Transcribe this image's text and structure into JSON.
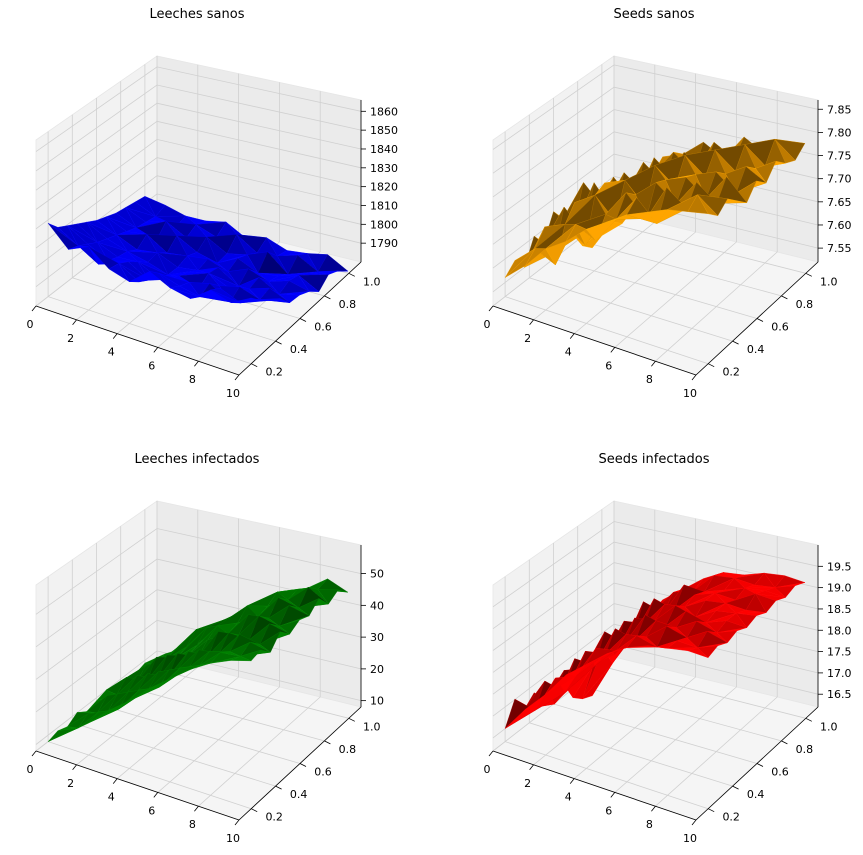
{
  "chart_data": [
    {
      "type": "surface3d",
      "title": "Leeches sanos",
      "color": "#0000ff",
      "x_ticks": [
        "0",
        "2",
        "4",
        "6",
        "8",
        "10"
      ],
      "y_ticks": [
        "0.2",
        "0.4",
        "0.6",
        "0.8",
        "1.0"
      ],
      "z_ticks": [
        "1790",
        "1800",
        "1810",
        "1820",
        "1830",
        "1840",
        "1850",
        "1860"
      ],
      "xlim": [
        0,
        10
      ],
      "ylim": [
        0.1,
        1.1
      ],
      "zlim": [
        1780,
        1866
      ],
      "z_rows": [
        [
          1818,
          1808,
          1813,
          1805,
          1802,
          1811,
          1806,
          1804,
          1812,
          1809,
          1815
        ],
        [
          1812,
          1806,
          1800,
          1804,
          1798,
          1806,
          1803,
          1801,
          1809,
          1805,
          1810
        ],
        [
          1809,
          1803,
          1798,
          1801,
          1795,
          1799,
          1801,
          1804,
          1798,
          1803,
          1806
        ],
        [
          1806,
          1800,
          1796,
          1797,
          1792,
          1797,
          1794,
          1799,
          1802,
          1799,
          1803
        ],
        [
          1803,
          1798,
          1795,
          1793,
          1790,
          1795,
          1798,
          1794,
          1797,
          1801,
          1797
        ],
        [
          1800,
          1796,
          1792,
          1794,
          1790,
          1792,
          1797,
          1791,
          1799,
          1794,
          1797
        ],
        [
          1798,
          1794,
          1796,
          1790,
          1792,
          1794,
          1791,
          1796,
          1793,
          1797,
          1795
        ],
        [
          1796,
          1792,
          1789,
          1795,
          1790,
          1788,
          1794,
          1790,
          1792,
          1796,
          1791
        ],
        [
          1795,
          1791,
          1795,
          1790,
          1794,
          1789,
          1792,
          1797,
          1789,
          1793,
          1796
        ],
        [
          1794,
          1790,
          1788,
          1793,
          1790,
          1795,
          1789,
          1791,
          1795,
          1790,
          1794
        ],
        [
          1793,
          1792,
          1790,
          1791,
          1794,
          1789,
          1793,
          1790,
          1792,
          1795,
          1790
        ]
      ]
    },
    {
      "type": "surface3d",
      "title": "Seeds sanos",
      "color": "#ffa500",
      "x_ticks": [
        "0",
        "2",
        "4",
        "6",
        "8",
        "10"
      ],
      "y_ticks": [
        "0.2",
        "0.4",
        "0.6",
        "0.8",
        "1.0"
      ],
      "z_ticks": [
        "7.55",
        "7.60",
        "7.65",
        "7.70",
        "7.75",
        "7.80",
        "7.85"
      ],
      "xlim": [
        0,
        10
      ],
      "ylim": [
        0.1,
        1.1
      ],
      "zlim": [
        7.52,
        7.87
      ],
      "z_rows": [
        [
          7.56,
          7.6,
          7.65,
          7.68,
          7.72,
          7.75,
          7.78,
          7.8,
          7.82,
          7.83,
          7.84
        ],
        [
          7.58,
          7.62,
          7.6,
          7.7,
          7.68,
          7.74,
          7.8,
          7.76,
          7.8,
          7.85,
          7.82
        ],
        [
          7.55,
          7.65,
          7.67,
          7.64,
          7.72,
          7.78,
          7.74,
          7.82,
          7.79,
          7.81,
          7.84
        ],
        [
          7.6,
          7.58,
          7.7,
          7.73,
          7.69,
          7.76,
          7.8,
          7.77,
          7.83,
          7.8,
          7.82
        ],
        [
          7.57,
          7.66,
          7.62,
          7.74,
          7.76,
          7.72,
          7.79,
          7.81,
          7.78,
          7.84,
          7.8
        ],
        [
          7.62,
          7.6,
          7.71,
          7.66,
          7.75,
          7.79,
          7.76,
          7.8,
          7.82,
          7.79,
          7.83
        ],
        [
          7.59,
          7.68,
          7.64,
          7.73,
          7.7,
          7.77,
          7.81,
          7.78,
          7.8,
          7.83,
          7.81
        ],
        [
          7.54,
          7.61,
          7.69,
          7.65,
          7.76,
          7.73,
          7.78,
          7.82,
          7.79,
          7.81,
          7.84
        ],
        [
          7.5,
          7.58,
          7.63,
          7.72,
          7.69,
          7.77,
          7.75,
          7.8,
          7.83,
          7.8,
          7.82
        ],
        [
          7.48,
          7.55,
          7.66,
          7.68,
          7.74,
          7.71,
          7.79,
          7.77,
          7.81,
          7.84,
          7.81
        ],
        [
          7.49,
          7.53,
          7.6,
          7.7,
          7.72,
          7.76,
          7.74,
          7.8,
          7.78,
          7.82,
          7.83
        ]
      ]
    },
    {
      "type": "surface3d",
      "title": "Leeches infectados",
      "color": "#008000",
      "x_ticks": [
        "0",
        "2",
        "4",
        "6",
        "8",
        "10"
      ],
      "y_ticks": [
        "0.2",
        "0.4",
        "0.6",
        "0.8",
        "1.0"
      ],
      "z_ticks": [
        "10",
        "20",
        "30",
        "40",
        "50"
      ],
      "xlim": [
        0,
        10
      ],
      "ylim": [
        0.1,
        1.1
      ],
      "zlim": [
        8,
        59
      ],
      "z_rows": [
        [
          8,
          13,
          18,
          24,
          29,
          35,
          40,
          45,
          49,
          52,
          54
        ],
        [
          9,
          12,
          19,
          22,
          30,
          33,
          41,
          44,
          50,
          51,
          55
        ],
        [
          8,
          14,
          17,
          25,
          28,
          36,
          39,
          46,
          48,
          53,
          52
        ],
        [
          10,
          12,
          20,
          23,
          31,
          34,
          42,
          43,
          51,
          50,
          56
        ],
        [
          8,
          15,
          18,
          26,
          27,
          37,
          38,
          47,
          47,
          54,
          53
        ],
        [
          9,
          13,
          21,
          22,
          32,
          33,
          43,
          44,
          52,
          51,
          55
        ],
        [
          10,
          16,
          17,
          27,
          29,
          36,
          40,
          48,
          49,
          55,
          54
        ],
        [
          8,
          12,
          22,
          24,
          30,
          38,
          41,
          45,
          53,
          52,
          57
        ],
        [
          9,
          15,
          19,
          25,
          33,
          34,
          44,
          46,
          50,
          56,
          53
        ],
        [
          8,
          13,
          20,
          28,
          29,
          37,
          39,
          48,
          51,
          53,
          55
        ],
        [
          9,
          14,
          18,
          23,
          31,
          35,
          42,
          45,
          49,
          54,
          52
        ]
      ]
    },
    {
      "type": "surface3d",
      "title": "Seeds infectados",
      "color": "#ff0000",
      "x_ticks": [
        "0",
        "2",
        "4",
        "6",
        "8",
        "10"
      ],
      "y_ticks": [
        "0.2",
        "0.4",
        "0.6",
        "0.8",
        "1.0"
      ],
      "z_ticks": [
        "16.5",
        "17.0",
        "17.5",
        "18.0",
        "18.5",
        "19.0",
        "19.5"
      ],
      "xlim": [
        0,
        10
      ],
      "ylim": [
        0.1,
        1.1
      ],
      "zlim": [
        16.2,
        20.0
      ],
      "z_rows": [
        [
          16.5,
          17.1,
          17.6,
          18.2,
          18.6,
          19.0,
          19.3,
          19.5,
          19.6,
          19.7,
          19.7
        ],
        [
          17.0,
          16.9,
          17.8,
          18.0,
          18.8,
          18.9,
          19.4,
          19.3,
          19.6,
          19.6,
          19.8
        ],
        [
          16.6,
          17.4,
          17.3,
          18.4,
          18.5,
          19.1,
          19.2,
          19.6,
          19.5,
          19.8,
          19.7
        ],
        [
          16.8,
          16.7,
          17.9,
          17.9,
          18.9,
          18.8,
          19.4,
          19.4,
          19.7,
          19.6,
          19.8
        ],
        [
          16.4,
          17.3,
          17.5,
          18.5,
          18.4,
          19.2,
          19.1,
          19.6,
          19.5,
          19.7,
          19.7
        ],
        [
          16.2,
          16.8,
          17.7,
          17.8,
          18.8,
          18.9,
          19.4,
          19.3,
          19.6,
          19.7,
          19.8
        ],
        [
          16.5,
          17.2,
          17.4,
          18.4,
          18.5,
          19.1,
          19.2,
          19.5,
          19.6,
          19.6,
          19.7
        ],
        [
          16.0,
          16.9,
          17.8,
          17.9,
          18.9,
          18.8,
          19.3,
          19.5,
          19.5,
          19.8,
          19.8
        ],
        [
          15.8,
          17.1,
          17.3,
          18.5,
          18.4,
          19.2,
          19.2,
          19.4,
          19.6,
          19.7,
          19.7
        ],
        [
          15.7,
          16.6,
          17.7,
          18.1,
          18.7,
          18.9,
          19.4,
          19.5,
          19.5,
          19.6,
          19.8
        ],
        [
          15.9,
          16.9,
          17.5,
          18.2,
          18.6,
          19.0,
          19.3,
          19.4,
          19.6,
          19.7,
          19.7
        ]
      ]
    }
  ]
}
